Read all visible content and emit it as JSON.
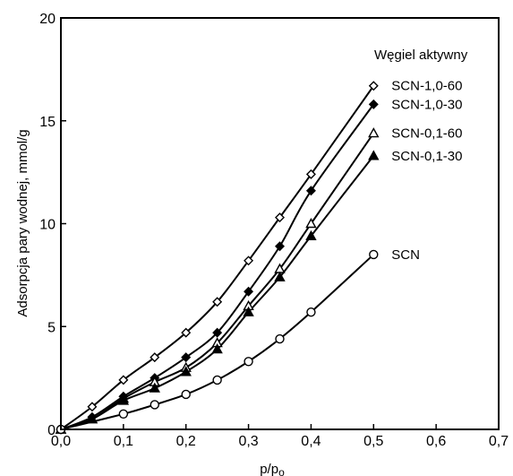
{
  "chart_data": {
    "type": "line",
    "title": "",
    "xlabel": "p/p",
    "xlabel_sub": "o",
    "ylabel": "Adsorpcja pary wodnej, mmol/g",
    "xlim": [
      0,
      0.7
    ],
    "ylim": [
      0,
      20
    ],
    "x_ticks": [
      0,
      0.1,
      0.2,
      0.3,
      0.4,
      0.5,
      0.6,
      0.7
    ],
    "x_tick_labels": [
      "0,0",
      "0,1",
      "0,2",
      "0,3",
      "0,4",
      "0,5",
      "0,6",
      "0,7"
    ],
    "y_ticks": [
      0,
      5,
      10,
      15,
      20
    ],
    "y_tick_labels": [
      "0",
      "5",
      "10",
      "15",
      "20"
    ],
    "grid": false,
    "legend_title": "Węgiel aktywny",
    "series": [
      {
        "name": "SCN-1,0-60",
        "marker": "diamond-open",
        "x": [
          0.0,
          0.05,
          0.1,
          0.15,
          0.2,
          0.25,
          0.3,
          0.35,
          0.4,
          0.5
        ],
        "y": [
          0.0,
          1.1,
          2.4,
          3.5,
          4.7,
          6.2,
          8.2,
          10.3,
          12.4,
          16.7
        ]
      },
      {
        "name": "SCN-1,0-30",
        "marker": "diamond-filled",
        "x": [
          0.0,
          0.05,
          0.1,
          0.15,
          0.2,
          0.25,
          0.3,
          0.35,
          0.4,
          0.5
        ],
        "y": [
          0.0,
          0.6,
          1.6,
          2.5,
          3.5,
          4.7,
          6.7,
          8.9,
          11.6,
          15.8
        ]
      },
      {
        "name": "SCN-0,1-60",
        "marker": "triangle-open",
        "x": [
          0.0,
          0.05,
          0.1,
          0.15,
          0.2,
          0.25,
          0.3,
          0.35,
          0.4,
          0.5
        ],
        "y": [
          0.0,
          0.5,
          1.5,
          2.3,
          3.0,
          4.2,
          6.0,
          7.8,
          10.0,
          14.4
        ]
      },
      {
        "name": "SCN-0,1-30",
        "marker": "triangle-filled",
        "x": [
          0.0,
          0.05,
          0.1,
          0.15,
          0.2,
          0.25,
          0.3,
          0.35,
          0.4,
          0.5
        ],
        "y": [
          0.0,
          0.5,
          1.4,
          2.0,
          2.8,
          3.9,
          5.7,
          7.4,
          9.4,
          13.3
        ]
      },
      {
        "name": "SCN",
        "marker": "circle-open",
        "x": [
          0.0,
          0.1,
          0.15,
          0.2,
          0.25,
          0.3,
          0.35,
          0.4,
          0.5
        ],
        "y": [
          0.0,
          0.75,
          1.2,
          1.7,
          2.4,
          3.3,
          4.4,
          5.7,
          8.5
        ]
      }
    ]
  }
}
